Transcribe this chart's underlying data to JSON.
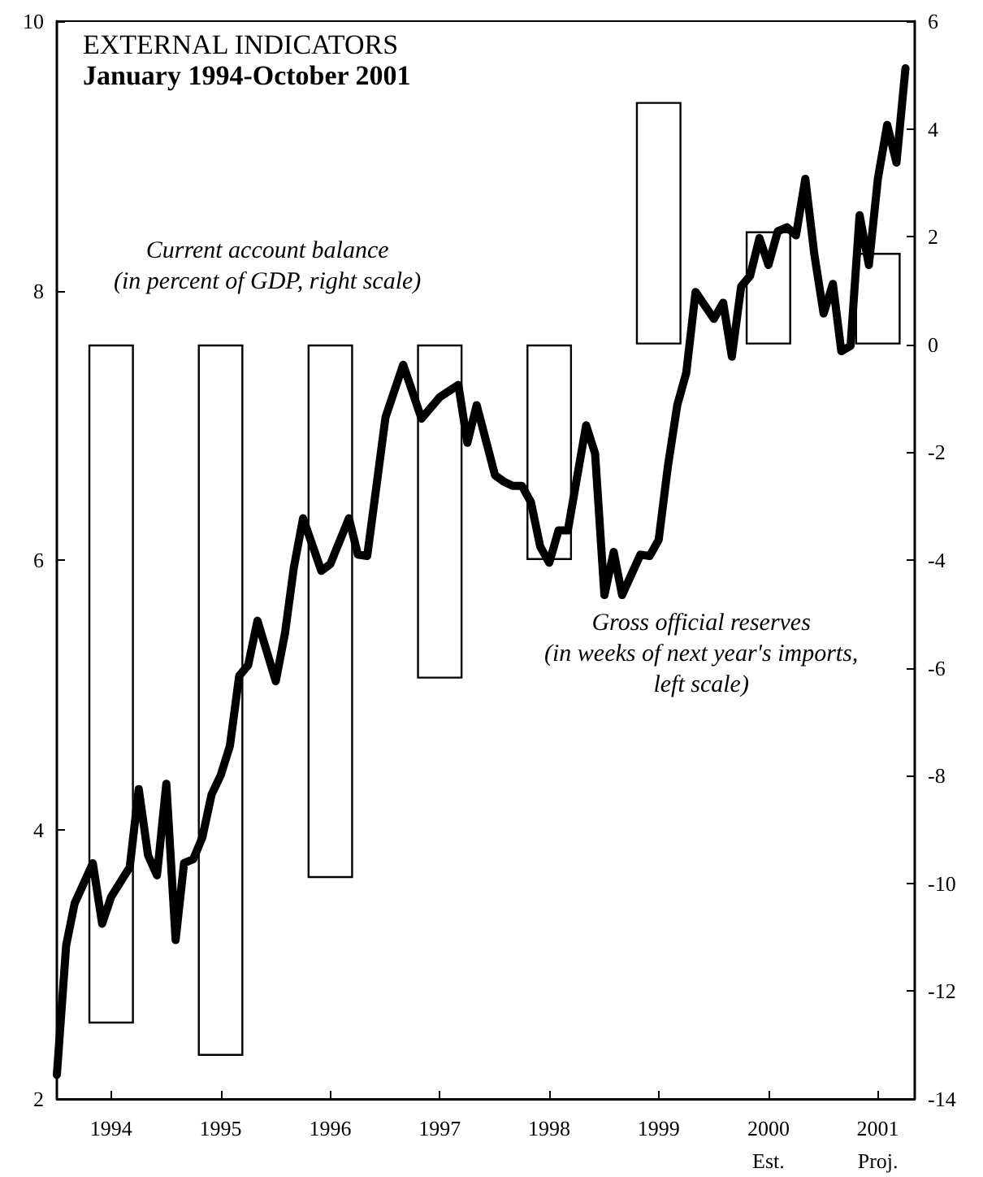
{
  "chart_data": {
    "type": "bar",
    "title": "EXTERNAL INDICATORS",
    "subtitle": "January 1994-October 2001",
    "xlim": [
      "1994-01",
      "2001-11"
    ],
    "xticks": [
      {
        "value": "1994-07",
        "label": "1994"
      },
      {
        "value": "1995-07",
        "label": "1995"
      },
      {
        "value": "1996-07",
        "label": "1996"
      },
      {
        "value": "1997-07",
        "label": "1997"
      },
      {
        "value": "1998-07",
        "label": "1998"
      },
      {
        "value": "1999-07",
        "label": "1999"
      },
      {
        "value": "2000-07",
        "label": "2000\nEst."
      },
      {
        "value": "2001-07",
        "label": "2001\nProj."
      }
    ],
    "ylim": [
      2,
      10
    ],
    "yticks": [
      2,
      4,
      6,
      8,
      10
    ],
    "y2lim": [
      -14,
      6
    ],
    "y2ticks": [
      -14,
      -12,
      -10,
      -8,
      -6,
      -4,
      -2,
      0,
      2,
      4,
      6
    ],
    "grid": false,
    "legend": false,
    "series": [
      {
        "axis": "y2",
        "name": "Current account balance\n(in percent of GDP, right scale)",
        "color": "#000000",
        "x": [
          "1994-07",
          "1995-07",
          "1996-07",
          "1997-07",
          "1998-07",
          "1999-07",
          "2000-07",
          "2001-07"
        ],
        "values": [
          -12.6,
          -13.2,
          -9.9,
          -6.2,
          -4.0,
          4.5,
          2.1,
          1.7
        ]
      },
      {
        "type": "line",
        "name": "Gross official reserves\n(in weeks of next year's imports,\nleft scale)",
        "color": "#000000",
        "x": [
          "1994-01",
          "1994-02",
          "1994-03",
          "1994-05",
          "1994-06",
          "1994-07",
          "1994-09",
          "1994-10",
          "1994-11",
          "1994-12",
          "1995-01",
          "1995-02",
          "1995-03",
          "1995-04",
          "1995-05",
          "1995-06",
          "1995-07",
          "1995-08",
          "1995-09",
          "1995-10",
          "1995-11",
          "1996-01",
          "1996-02",
          "1996-03",
          "1996-04",
          "1996-06",
          "1996-07",
          "1996-09",
          "1996-10",
          "1996-11",
          "1997-01",
          "1997-03",
          "1997-05",
          "1997-07",
          "1997-09",
          "1997-10",
          "1997-11",
          "1998-01",
          "1998-02",
          "1998-03",
          "1998-04",
          "1998-05",
          "1998-06",
          "1998-07",
          "1998-08",
          "1998-09",
          "1998-11",
          "1998-12",
          "1999-01",
          "1999-02",
          "1999-03",
          "1999-05",
          "1999-06",
          "1999-07",
          "1999-08",
          "1999-09",
          "1999-10",
          "1999-11",
          "2000-01",
          "2000-02",
          "2000-03",
          "2000-04",
          "2000-05",
          "2000-06",
          "2000-07",
          "2000-08",
          "2000-09",
          "2000-10",
          "2000-11",
          "2000-12",
          "2001-01",
          "2001-02",
          "2001-03",
          "2001-04",
          "2001-05",
          "2001-06",
          "2001-07",
          "2001-08",
          "2001-09",
          "2001-10"
        ],
        "values": [
          2.18,
          3.14,
          3.45,
          3.75,
          3.3,
          3.5,
          3.72,
          4.3,
          3.81,
          3.66,
          4.34,
          3.18,
          3.75,
          3.78,
          3.94,
          4.26,
          4.4,
          4.62,
          5.14,
          5.22,
          5.55,
          5.1,
          5.46,
          5.94,
          6.31,
          5.92,
          5.97,
          6.31,
          6.04,
          6.03,
          7.06,
          7.45,
          7.05,
          7.21,
          7.3,
          6.87,
          7.15,
          6.63,
          6.58,
          6.55,
          6.55,
          6.43,
          6.1,
          5.98,
          6.22,
          6.22,
          7.0,
          6.79,
          5.74,
          6.06,
          5.74,
          6.04,
          6.03,
          6.15,
          6.7,
          7.15,
          7.39,
          7.99,
          7.79,
          7.91,
          7.51,
          8.03,
          8.11,
          8.39,
          8.19,
          8.44,
          8.47,
          8.41,
          8.83,
          8.27,
          7.83,
          8.05,
          7.55,
          7.59,
          8.56,
          8.19,
          8.83,
          9.23,
          8.95,
          9.65
        ]
      }
    ],
    "marker": "none",
    "line_style": "solid"
  }
}
